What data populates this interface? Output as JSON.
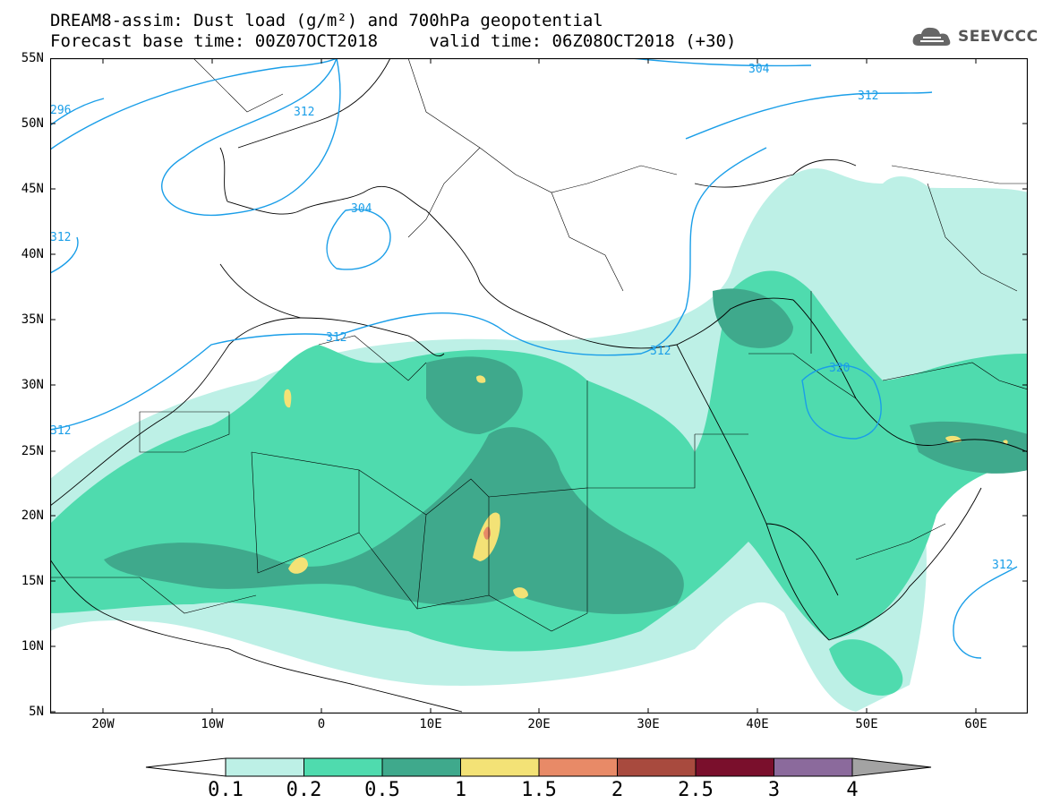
{
  "title": {
    "line1": "DREAM8-assim: Dust load (g/m²) and 700hPa geopotential",
    "line2": "Forecast base time: 00Z07OCT2018     valid time: 06Z08OCT2018 (+30)"
  },
  "logo": {
    "text": "SEEVCCC",
    "icon": "cloud-icon"
  },
  "map": {
    "lat_labels": [
      "55N",
      "50N",
      "45N",
      "40N",
      "35N",
      "30N",
      "25N",
      "20N",
      "15N",
      "10N",
      "5N"
    ],
    "lon_labels": [
      "20W",
      "10W",
      "0",
      "10E",
      "20E",
      "30E",
      "40E",
      "50E",
      "60E"
    ],
    "contour_labels": [
      "296",
      "304",
      "312",
      "304",
      "312",
      "312",
      "312",
      "312",
      "320",
      "312"
    ],
    "colors": {
      "contour": "#1a9ee8",
      "land_border": "#000000"
    }
  },
  "legend": {
    "ticks": [
      "0.1",
      "0.2",
      "0.5",
      "1",
      "1.5",
      "2",
      "2.5",
      "3",
      "4"
    ],
    "colors": [
      "#ffffff",
      "#bdf0e6",
      "#4fdbae",
      "#3fa98c",
      "#f3e276",
      "#e88a67",
      "#a84a3e",
      "#7a0f2c",
      "#8b6a9c",
      "#a3a3a3"
    ]
  }
}
